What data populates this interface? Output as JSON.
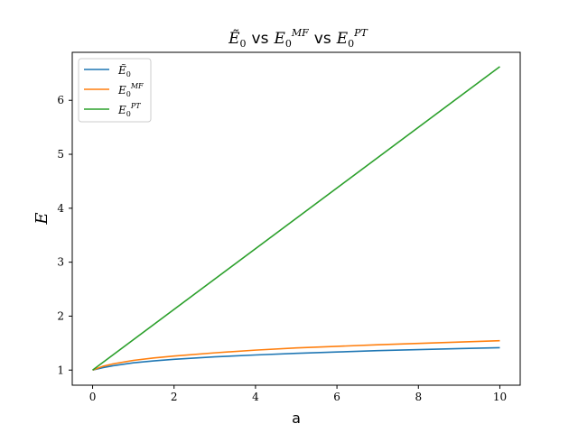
{
  "chart_data": {
    "type": "line",
    "title": {
      "e0tilde": "Ẽ",
      "sub": "0",
      "vs": "vs",
      "e": "E",
      "mf": "MF",
      "pt": "PT"
    },
    "xlabel": "a",
    "ylabel": "E",
    "xlim": [
      -0.5,
      10.5
    ],
    "ylim": [
      0.72,
      6.89
    ],
    "xticks": [
      0,
      2,
      4,
      6,
      8,
      10
    ],
    "yticks": [
      1,
      2,
      3,
      4,
      5,
      6
    ],
    "legend_position": "top-left",
    "grid": false,
    "series": [
      {
        "name": "Ẽ0",
        "legend": {
          "base": "Ẽ",
          "sub": "0",
          "sup": ""
        },
        "color": "#1f77b4",
        "x": [
          0,
          0.25,
          0.5,
          1,
          1.5,
          2,
          3,
          4,
          5,
          6,
          7,
          8,
          9,
          10
        ],
        "y": [
          1.0,
          1.045,
          1.08,
          1.135,
          1.17,
          1.2,
          1.245,
          1.28,
          1.31,
          1.335,
          1.36,
          1.38,
          1.398,
          1.415
        ]
      },
      {
        "name": "E0^MF",
        "legend": {
          "base": "E",
          "sub": "0",
          "sup": "MF"
        },
        "color": "#ff7f0e",
        "x": [
          0,
          0.25,
          0.5,
          1,
          1.5,
          2,
          3,
          4,
          5,
          6,
          7,
          8,
          9,
          10
        ],
        "y": [
          1.0,
          1.07,
          1.115,
          1.18,
          1.225,
          1.26,
          1.32,
          1.37,
          1.41,
          1.44,
          1.47,
          1.495,
          1.52,
          1.545
        ]
      },
      {
        "name": "E0^PT",
        "legend": {
          "base": "E",
          "sub": "0",
          "sup": "PT"
        },
        "color": "#2ca02c",
        "x": [
          0,
          10
        ],
        "y": [
          1.0,
          6.625
        ]
      }
    ]
  }
}
